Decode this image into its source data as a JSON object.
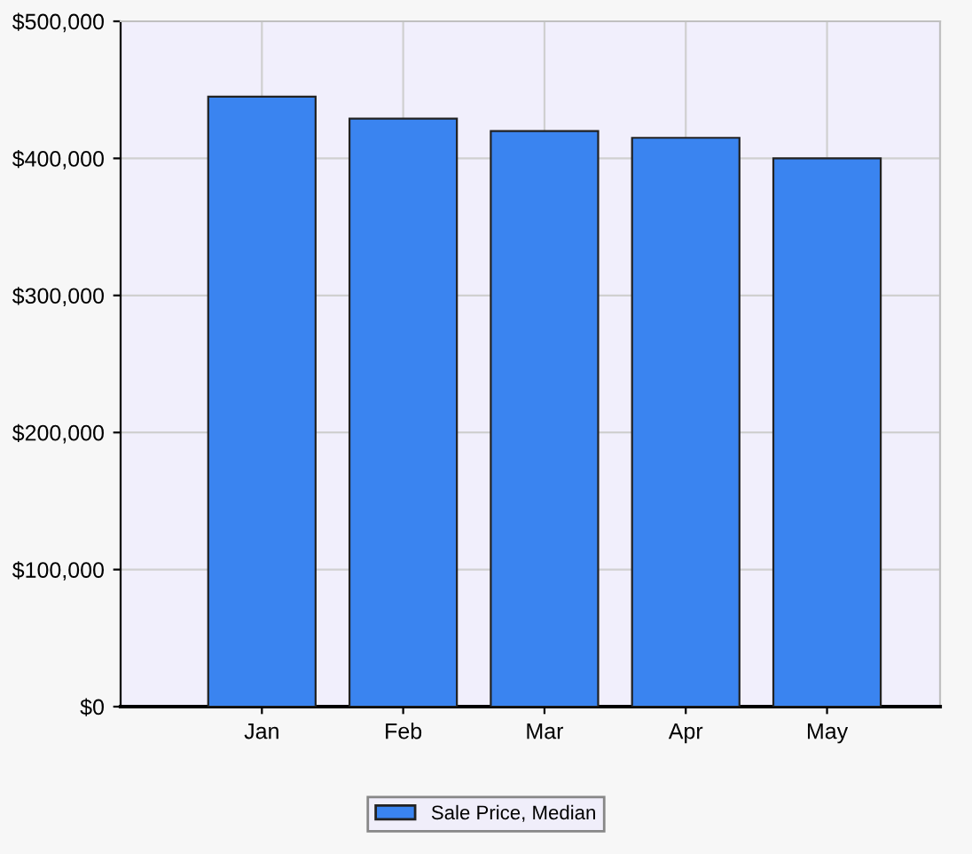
{
  "chart_data": {
    "type": "bar",
    "categories": [
      "Jan",
      "Feb",
      "Mar",
      "Apr",
      "May"
    ],
    "series": [
      {
        "name": "Sale Price, Median",
        "color": "#3a84f0",
        "values": [
          445000,
          429000,
          420000,
          415000,
          400000
        ]
      }
    ],
    "ylim": [
      0,
      500000
    ],
    "yticks": [
      {
        "value": 0,
        "label": "$0"
      },
      {
        "value": 100000,
        "label": "$100,000"
      },
      {
        "value": 200000,
        "label": "$200,000"
      },
      {
        "value": 300000,
        "label": "$300,000"
      },
      {
        "value": 400000,
        "label": "$400,000"
      },
      {
        "value": 500000,
        "label": "$500,000"
      }
    ],
    "grid": true,
    "legend": "bottom"
  }
}
